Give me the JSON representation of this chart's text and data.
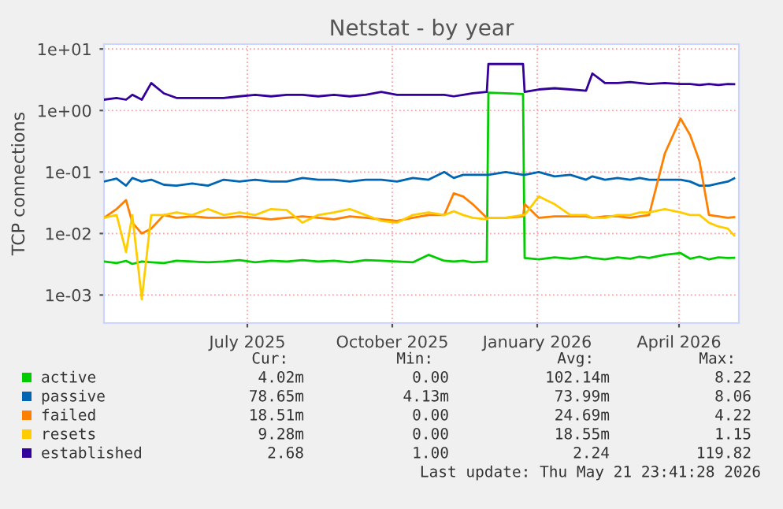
{
  "chart_data": {
    "type": "line",
    "title": "Netstat - by year",
    "ylabel": "TCP connections",
    "log": "y",
    "grid": true,
    "legend": "bottom",
    "x": [
      "2025-04-16",
      "2025-04-24",
      "2025-04-30",
      "2025-05-04",
      "2025-05-10",
      "2025-05-16",
      "2025-05-24",
      "2025-06-01",
      "2025-06-11",
      "2025-06-21",
      "2025-07-01",
      "2025-07-11",
      "2025-07-21",
      "2025-07-31",
      "2025-08-10",
      "2025-08-20",
      "2025-08-30",
      "2025-09-09",
      "2025-09-19",
      "2025-09-29",
      "2025-10-09",
      "2025-10-19",
      "2025-10-29",
      "2025-11-08",
      "2025-11-18",
      "2025-11-24",
      "2025-11-30",
      "2025-12-06",
      "2025-12-15",
      "2025-12-16",
      "2025-12-27",
      "2026-01-07",
      "2026-01-08",
      "2026-01-17",
      "2026-01-27",
      "2026-02-06",
      "2026-02-16",
      "2026-02-20",
      "2026-02-28",
      "2026-03-08",
      "2026-03-16",
      "2026-03-22",
      "2026-03-28",
      "2026-04-07",
      "2026-04-17",
      "2026-04-23",
      "2026-04-29",
      "2026-05-05",
      "2026-05-11",
      "2026-05-17",
      "2026-05-21"
    ],
    "xlim": [
      "2025-04-16",
      "2026-05-24"
    ],
    "xticks": [
      {
        "value": "2025-07-16",
        "label": "July 2025"
      },
      {
        "value": "2025-10-16",
        "label": "October 2025"
      },
      {
        "value": "2026-01-16",
        "label": "January 2026"
      },
      {
        "value": "2026-04-16",
        "label": "April 2026"
      }
    ],
    "ylim": [
      0.00035,
      12
    ],
    "yticks": [
      {
        "value": 0.001,
        "label": "1e-03"
      },
      {
        "value": 0.01,
        "label": "1e-02"
      },
      {
        "value": 0.1,
        "label": "1e-01"
      },
      {
        "value": 1,
        "label": "1e+00"
      },
      {
        "value": 10,
        "label": "1e+01"
      }
    ],
    "series": [
      {
        "name": "active",
        "color": "#00cc00",
        "values": [
          0.0035,
          0.0033,
          0.0036,
          0.0032,
          0.0035,
          0.0034,
          0.0033,
          0.0036,
          0.0035,
          0.0034,
          0.0035,
          0.0037,
          0.0034,
          0.0036,
          0.0035,
          0.0037,
          0.0035,
          0.0036,
          0.0034,
          0.0037,
          0.0036,
          0.0035,
          0.0034,
          0.0045,
          0.0036,
          0.0035,
          0.0036,
          0.0034,
          0.0035,
          1.95,
          1.9,
          1.85,
          0.004,
          0.0038,
          0.0041,
          0.0039,
          0.0042,
          0.004,
          0.0038,
          0.0041,
          0.0039,
          0.0042,
          0.004,
          0.0045,
          0.0048,
          0.0039,
          0.0042,
          0.0038,
          0.0041,
          0.004,
          0.00402
        ]
      },
      {
        "name": "passive",
        "color": "#0066b3",
        "values": [
          0.07,
          0.078,
          0.06,
          0.08,
          0.07,
          0.075,
          0.062,
          0.06,
          0.065,
          0.06,
          0.075,
          0.07,
          0.075,
          0.07,
          0.07,
          0.08,
          0.075,
          0.075,
          0.07,
          0.075,
          0.075,
          0.07,
          0.08,
          0.075,
          0.1,
          0.08,
          0.09,
          0.09,
          0.09,
          0.09,
          0.1,
          0.09,
          0.09,
          0.1,
          0.085,
          0.09,
          0.075,
          0.085,
          0.075,
          0.08,
          0.075,
          0.08,
          0.075,
          0.075,
          0.075,
          0.07,
          0.06,
          0.06,
          0.065,
          0.07,
          0.0787
        ]
      },
      {
        "name": "failed",
        "color": "#ff8000",
        "values": [
          0.018,
          0.025,
          0.035,
          0.015,
          0.01,
          0.012,
          0.02,
          0.018,
          0.019,
          0.018,
          0.018,
          0.019,
          0.018,
          0.017,
          0.018,
          0.019,
          0.018,
          0.017,
          0.019,
          0.018,
          0.017,
          0.016,
          0.018,
          0.02,
          0.02,
          0.045,
          0.04,
          0.03,
          0.018,
          0.018,
          0.018,
          0.019,
          0.03,
          0.018,
          0.019,
          0.019,
          0.019,
          0.018,
          0.019,
          0.019,
          0.018,
          0.019,
          0.02,
          0.2,
          0.74,
          0.4,
          0.15,
          0.02,
          0.019,
          0.018,
          0.0185
        ]
      },
      {
        "name": "resets",
        "color": "#ffcc00",
        "values": [
          0.018,
          0.02,
          0.005,
          0.02,
          0.00085,
          0.02,
          0.02,
          0.022,
          0.02,
          0.025,
          0.02,
          0.022,
          0.02,
          0.025,
          0.024,
          0.015,
          0.02,
          0.022,
          0.025,
          0.02,
          0.016,
          0.015,
          0.02,
          0.022,
          0.02,
          0.023,
          0.02,
          0.018,
          0.017,
          0.018,
          0.018,
          0.02,
          0.02,
          0.04,
          0.03,
          0.02,
          0.02,
          0.018,
          0.018,
          0.02,
          0.02,
          0.022,
          0.022,
          0.025,
          0.022,
          0.02,
          0.02,
          0.015,
          0.013,
          0.012,
          0.00928
        ]
      },
      {
        "name": "established",
        "color": "#330099",
        "values": [
          1.5,
          1.6,
          1.5,
          1.8,
          1.5,
          2.8,
          1.9,
          1.6,
          1.6,
          1.6,
          1.6,
          1.7,
          1.8,
          1.7,
          1.8,
          1.8,
          1.7,
          1.8,
          1.7,
          1.8,
          2.0,
          1.8,
          1.8,
          1.8,
          1.8,
          1.7,
          1.8,
          1.9,
          2.0,
          5.7,
          5.7,
          5.7,
          2.0,
          2.2,
          2.3,
          2.2,
          2.1,
          4.0,
          2.8,
          2.8,
          2.9,
          2.8,
          2.7,
          2.8,
          2.7,
          2.7,
          2.6,
          2.7,
          2.6,
          2.7,
          2.68
        ]
      }
    ],
    "annotations": [
      "Cur:",
      "Min:",
      "Avg:",
      "Max:",
      "4.02m",
      "0.00",
      "102.14m",
      "8.22",
      "78.65m",
      "4.13m",
      "73.99m",
      "8.06",
      "18.51m",
      "0.00",
      "24.69m",
      "4.22",
      "9.28m",
      "0.00",
      "18.55m",
      "1.15",
      "2.68",
      "1.00",
      "2.24",
      "119.82",
      "Last update: Thu May 21 23:41:28 2026"
    ]
  }
}
